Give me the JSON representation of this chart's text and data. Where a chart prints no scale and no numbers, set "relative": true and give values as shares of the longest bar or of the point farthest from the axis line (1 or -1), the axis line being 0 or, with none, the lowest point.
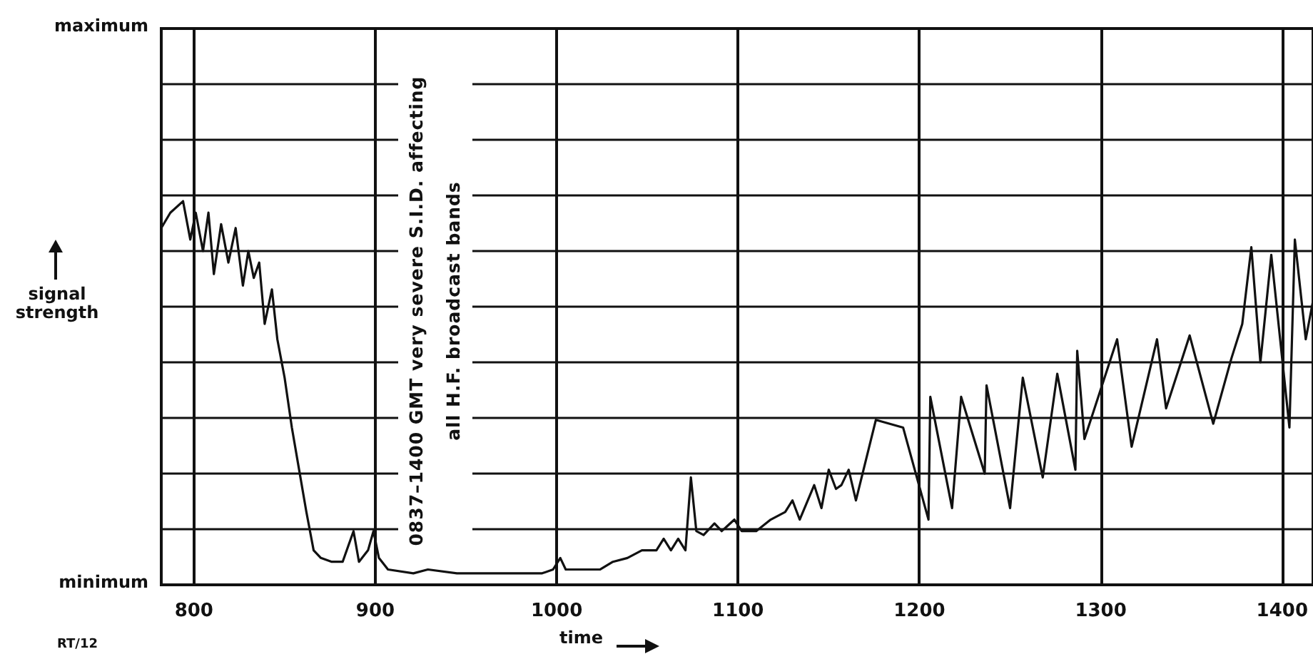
{
  "chart_data": {
    "type": "line",
    "xlabel": "time",
    "ylabel": "signal strength",
    "annotations": [
      "0837–1400 GMT very severe S.I.D. affecting all H.F. broadcast bands",
      "RT/12",
      "maximum",
      "minimum"
    ],
    "relative": true,
    "xlim": [
      782,
      1417
    ],
    "xticks": [
      800,
      900,
      1000,
      1100,
      1200,
      1300,
      1400
    ],
    "grid": true,
    "marker": "none",
    "line_style": "solid",
    "series": [
      {
        "color": "#111111",
        "x": [
          782,
          787,
          794,
          798,
          801,
          805,
          808,
          811,
          815,
          819,
          823,
          827,
          830,
          833,
          836,
          839,
          843,
          846,
          850,
          854,
          858,
          862,
          866,
          870,
          876,
          882,
          888,
          891,
          896,
          899,
          902,
          907,
          921,
          929,
          945,
          961,
          976,
          992,
          998,
          1002,
          1005,
          1016,
          1024,
          1031,
          1039,
          1047,
          1055,
          1059,
          1063,
          1067,
          1071,
          1074,
          1077,
          1081,
          1087,
          1091,
          1098,
          1102,
          1110,
          1118,
          1126,
          1130,
          1134,
          1142,
          1146,
          1150,
          1154,
          1157,
          1161,
          1165,
          1176,
          1191,
          1205,
          1206,
          1218,
          1223,
          1236,
          1237,
          1250,
          1257,
          1268,
          1276,
          1286,
          1287,
          1291,
          1309,
          1317,
          1331,
          1336,
          1349,
          1362,
          1372,
          1378,
          1383,
          1388,
          1394,
          1404,
          1407,
          1413,
          1417
        ],
        "values": [
          0.93,
          0.97,
          1,
          0.9,
          0.97,
          0.87,
          0.97,
          0.81,
          0.94,
          0.84,
          0.93,
          0.78,
          0.87,
          0.8,
          0.84,
          0.68,
          0.77,
          0.64,
          0.54,
          0.41,
          0.3,
          0.19,
          0.09,
          0.07,
          0.06,
          0.06,
          0.14,
          0.06,
          0.09,
          0.14,
          0.07,
          0.04,
          0.03,
          0.04,
          0.03,
          0.03,
          0.03,
          0.03,
          0.04,
          0.07,
          0.04,
          0.04,
          0.04,
          0.06,
          0.07,
          0.09,
          0.09,
          0.12,
          0.09,
          0.12,
          0.09,
          0.28,
          0.14,
          0.13,
          0.16,
          0.14,
          0.17,
          0.14,
          0.14,
          0.17,
          0.19,
          0.22,
          0.17,
          0.26,
          0.2,
          0.3,
          0.25,
          0.26,
          0.3,
          0.22,
          0.43,
          0.41,
          0.17,
          0.49,
          0.2,
          0.49,
          0.29,
          0.52,
          0.2,
          0.54,
          0.28,
          0.55,
          0.3,
          0.61,
          0.38,
          0.64,
          0.36,
          0.64,
          0.46,
          0.65,
          0.42,
          0.59,
          0.68,
          0.88,
          0.58,
          0.86,
          0.41,
          0.9,
          0.64,
          0.74
        ]
      }
    ]
  }
}
